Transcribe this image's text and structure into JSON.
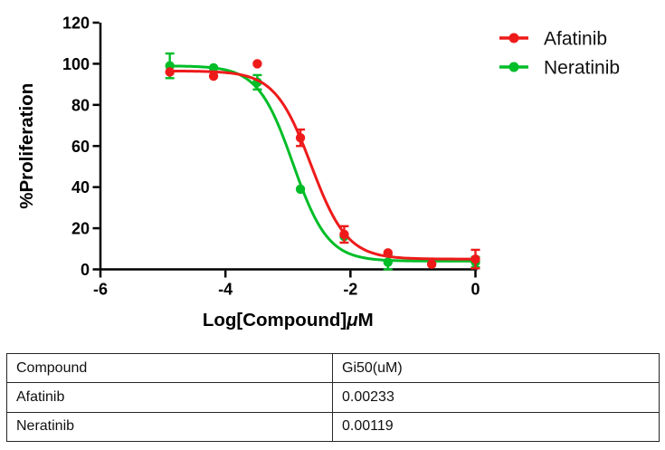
{
  "chart_data": {
    "type": "line",
    "title": "",
    "xlabel": "Log[Compound]μM",
    "ylabel": "%Proliferation",
    "xlim": [
      -6,
      0.1
    ],
    "ylim": [
      0,
      120
    ],
    "x_ticks": [
      -6,
      -4,
      -2,
      0
    ],
    "y_ticks": [
      0,
      20,
      40,
      60,
      80,
      100,
      120
    ],
    "grid": false,
    "legend_position": "top-right",
    "axis_color": "#000000",
    "x": [
      -4.89,
      -4.19,
      -3.49,
      -2.8,
      -2.1,
      -1.4,
      -0.7,
      0
    ],
    "series": [
      {
        "name": "Afatinib",
        "color": "#ee1a1a",
        "marker": "circle",
        "values": [
          96,
          94,
          100,
          64,
          17,
          8,
          2.5,
          5
        ],
        "errors": [
          0,
          0,
          0,
          4,
          4,
          0,
          0,
          4.5
        ],
        "fit": {
          "top": 96.5,
          "bottom": 5,
          "logic50": -2.63,
          "hill": 1.5
        }
      },
      {
        "name": "Neratinib",
        "color": "#00bd28",
        "marker": "circle",
        "values": [
          99,
          98,
          91,
          39,
          16,
          3.5,
          3,
          3.5
        ],
        "errors": [
          6,
          0,
          3.5,
          0,
          0,
          3.5,
          0,
          2.5
        ],
        "fit": {
          "top": 99,
          "bottom": 4,
          "logic50": -2.92,
          "hill": 1.55
        }
      }
    ]
  },
  "table": {
    "headers": [
      "Compound",
      "Gi50(uM)"
    ],
    "rows": [
      [
        "Afatinib",
        "0.00233"
      ],
      [
        "Neratinib",
        "0.00119"
      ]
    ]
  }
}
